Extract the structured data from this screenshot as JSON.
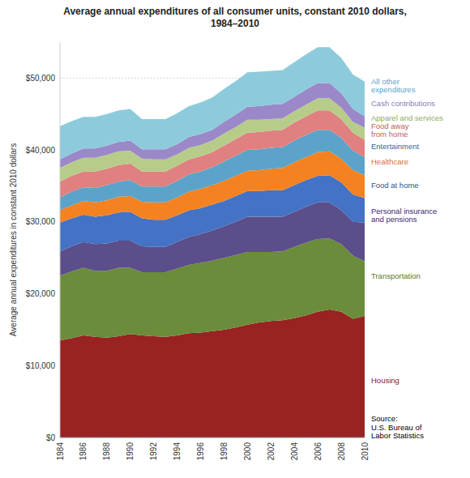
{
  "chart_data": {
    "type": "area",
    "stacked": true,
    "title": "Average annual expenditures of all consumer units, constant 2010 dollars,\n1984–2010",
    "y_label": "Average annual expenditures in constant 2010 dollars",
    "x": [
      1984,
      1985,
      1986,
      1987,
      1988,
      1989,
      1990,
      1991,
      1992,
      1993,
      1994,
      1995,
      1996,
      1997,
      1998,
      1999,
      2000,
      2001,
      2002,
      2003,
      2004,
      2005,
      2006,
      2007,
      2008,
      2009,
      2010
    ],
    "xlim": [
      1984,
      2010
    ],
    "xticks": [
      1984,
      1986,
      1988,
      1990,
      1992,
      1994,
      1996,
      1998,
      2000,
      2002,
      2004,
      2006,
      2008,
      2010
    ],
    "ylim": [
      0,
      55000
    ],
    "yticks": [
      {
        "value": 0,
        "label": "$0"
      },
      {
        "value": 10000,
        "label": "$10,000"
      },
      {
        "value": 20000,
        "label": "$20,000"
      },
      {
        "value": 30000,
        "label": "$30,000"
      },
      {
        "value": 40000,
        "label": "$40,000"
      },
      {
        "value": 50000,
        "label": "$50,000"
      }
    ],
    "grid": true,
    "series": [
      {
        "name": "Housing",
        "color": "#992222",
        "values": [
          13500,
          13800,
          14200,
          14000,
          13900,
          14100,
          14400,
          14200,
          14100,
          14000,
          14200,
          14500,
          14600,
          14800,
          15000,
          15300,
          15700,
          16000,
          16200,
          16300,
          16600,
          17000,
          17500,
          17800,
          17500,
          16500,
          16900
        ]
      },
      {
        "name": "Transportation",
        "color": "#6B8C3A",
        "values": [
          9000,
          9300,
          9400,
          9200,
          9300,
          9500,
          9200,
          8800,
          8900,
          9000,
          9300,
          9500,
          9700,
          9800,
          10000,
          10100,
          10100,
          9800,
          9600,
          9600,
          9900,
          10100,
          10100,
          9900,
          9400,
          8800,
          7600
        ]
      },
      {
        "name": "Personal insurance\nand pensions",
        "color": "#5B4E8A",
        "values": [
          3400,
          3500,
          3600,
          3700,
          3800,
          3800,
          3800,
          3600,
          3500,
          3500,
          3700,
          3900,
          4000,
          4200,
          4400,
          4600,
          4900,
          4900,
          4900,
          4800,
          4900,
          5000,
          5100,
          5000,
          4700,
          4700,
          5400
        ]
      },
      {
        "name": "Food at home",
        "color": "#4472C4",
        "values": [
          4000,
          3900,
          3800,
          3800,
          3900,
          3900,
          4000,
          3900,
          3800,
          3800,
          3700,
          3700,
          3600,
          3600,
          3500,
          3600,
          3600,
          3600,
          3700,
          3700,
          3700,
          3700,
          3700,
          3800,
          3900,
          3800,
          3400
        ]
      },
      {
        "name": "Healthcare",
        "color": "#F58220",
        "values": [
          1700,
          1800,
          1900,
          2000,
          2100,
          2200,
          2200,
          2300,
          2400,
          2400,
          2500,
          2600,
          2700,
          2700,
          2800,
          2800,
          2800,
          2900,
          3000,
          3100,
          3200,
          3200,
          3300,
          3300,
          3300,
          3400,
          3200
        ]
      },
      {
        "name": "Entertainment",
        "color": "#5BA3C9",
        "values": [
          1800,
          1900,
          1900,
          2000,
          2100,
          2100,
          2200,
          2100,
          2200,
          2200,
          2300,
          2400,
          2400,
          2500,
          2700,
          2800,
          2900,
          2900,
          2900,
          2900,
          3000,
          3100,
          3100,
          3000,
          2900,
          2700,
          2500
        ]
      },
      {
        "name": "Food away\nfrom home",
        "color": "#E08080",
        "values": [
          2200,
          2200,
          2200,
          2300,
          2300,
          2300,
          2300,
          2100,
          2100,
          2100,
          2100,
          2100,
          2100,
          2100,
          2200,
          2300,
          2400,
          2400,
          2400,
          2400,
          2500,
          2600,
          2700,
          2700,
          2600,
          2500,
          2400
        ]
      },
      {
        "name": "Apparel and services",
        "color": "#B8CC8A",
        "values": [
          1900,
          1900,
          1900,
          1900,
          1900,
          1900,
          1800,
          1800,
          1700,
          1700,
          1600,
          1600,
          1600,
          1600,
          1700,
          1700,
          1800,
          1700,
          1600,
          1600,
          1600,
          1600,
          1700,
          1700,
          1600,
          1500,
          1700
        ]
      },
      {
        "name": "Cash contributions",
        "color": "#9B88C8",
        "values": [
          1200,
          1200,
          1300,
          1300,
          1300,
          1300,
          1400,
          1300,
          1400,
          1400,
          1400,
          1500,
          1500,
          1500,
          1600,
          1700,
          1800,
          1900,
          2000,
          2000,
          2000,
          2100,
          2100,
          2100,
          2000,
          1800,
          1600
        ]
      },
      {
        "name": "All other\nexpenditures",
        "color": "#8DCBDC",
        "values": [
          4600,
          4500,
          4400,
          4400,
          4400,
          4400,
          4400,
          4200,
          4200,
          4200,
          4300,
          4300,
          4400,
          4500,
          4600,
          4700,
          4800,
          4800,
          4700,
          4700,
          4800,
          4900,
          5000,
          5000,
          4900,
          4800,
          4800
        ]
      }
    ],
    "annotations": [
      {
        "text": "Housing",
        "x": 2010,
        "y": 8000,
        "color": "#8B2020"
      },
      {
        "text": "Transportation",
        "x": 2010,
        "y": 22500,
        "color": "#5A7828"
      },
      {
        "text": "Personal insurance\nand pensions",
        "x": 2010,
        "y": 31000,
        "color": "#3A2870"
      },
      {
        "text": "Food at home",
        "x": 2010,
        "y": 35200,
        "color": "#2255A0"
      },
      {
        "text": "Healthcare",
        "x": 2010,
        "y": 38400,
        "color": "#E07020"
      },
      {
        "text": "Entertainment",
        "x": 2010,
        "y": 40600,
        "color": "#336699"
      },
      {
        "text": "Food away\nfrom home",
        "x": 2010,
        "y": 42800,
        "color": "#C06060"
      },
      {
        "text": "Apparel and services",
        "x": 2010,
        "y": 44500,
        "color": "#8DAA60"
      },
      {
        "text": "Cash contributions",
        "x": 2010,
        "y": 46500,
        "color": "#8B7BB8"
      },
      {
        "text": "All other\nexpenditures",
        "x": 2010,
        "y": 49000,
        "color": "#5BA3C9"
      },
      {
        "text": "Source:\nU.S. Bureau of\nLabor Statistics",
        "x": 2010,
        "y": 1500,
        "color": "#000000"
      }
    ]
  }
}
